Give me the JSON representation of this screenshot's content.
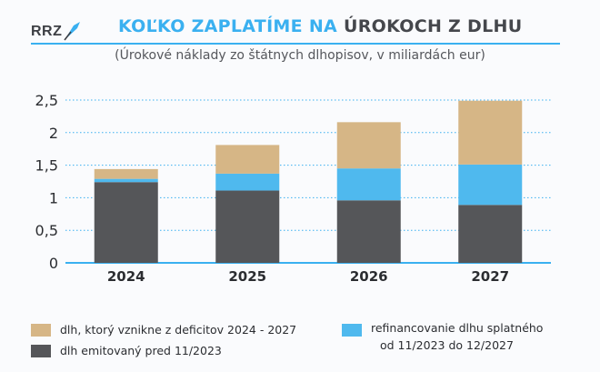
{
  "logo": {
    "text": "RRZ",
    "icon": "quill-icon"
  },
  "title": {
    "part1": "KOĽKO ZAPLATÍME NA",
    "part2": "ÚROKOCH Z DLHU"
  },
  "subtitle": "(Úrokové náklady zo štátnych dlhopisov, v miliardách eur)",
  "colors": {
    "accent": "#3ab0f0",
    "dark": "#555659",
    "blue": "#4fb9ee",
    "tan": "#d6b686",
    "grid": "#3ab0f0"
  },
  "chart_data": {
    "type": "bar",
    "stacked": true,
    "categories": [
      "2024",
      "2025",
      "2026",
      "2027"
    ],
    "y_ticks": [
      "0",
      "0,5",
      "1",
      "1,5",
      "2",
      "2,5"
    ],
    "ylim": [
      0,
      2.5
    ],
    "grid": true,
    "legend_position": "bottom",
    "series": [
      {
        "name": "dlh emitovaný pred 11/2023",
        "color": "#555659",
        "values": [
          1.24,
          1.11,
          0.96,
          0.89
        ]
      },
      {
        "name": "refinancovanie dlhu splatného od 11/2023 do 12/2027",
        "color": "#4fb9ee",
        "values": [
          0.05,
          0.26,
          0.49,
          0.62
        ]
      },
      {
        "name": "dlh, ktorý vznikne z deficitov 2024 - 2027",
        "color": "#d6b686",
        "values": [
          0.15,
          0.44,
          0.71,
          0.98
        ]
      }
    ]
  },
  "legend": {
    "tan_label": "dlh, ktorý vznikne z deficitov 2024 - 2027",
    "dark_label": "dlh emitovaný pred 11/2023",
    "blue_label_line1": "refinancovanie dlhu splatného",
    "blue_label_line2": "od 11/2023 do 12/2027"
  }
}
